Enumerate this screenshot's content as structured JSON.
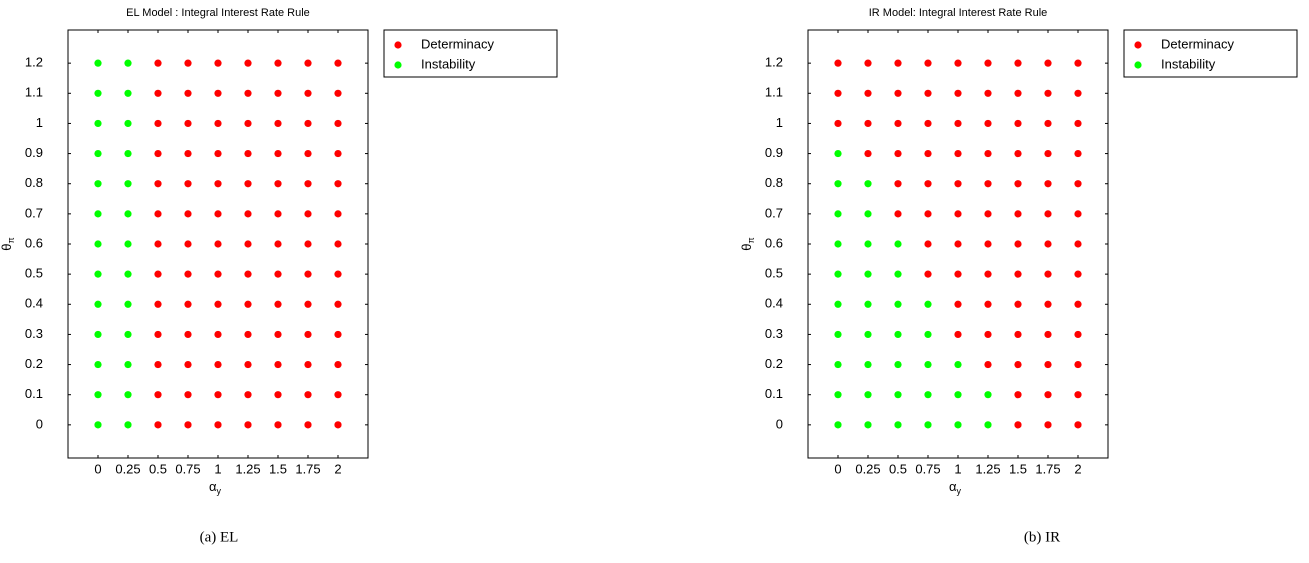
{
  "chart_data": [
    {
      "type": "scatter",
      "title": "EL Model : Integral Interest Rate Rule",
      "xlabel": "α",
      "xlabel_sub": "y",
      "ylabel": "θ",
      "ylabel_sub": "π",
      "caption": "(a)  EL",
      "xlim": [
        -0.25,
        2.25
      ],
      "ylim": [
        -0.11,
        1.31
      ],
      "xticks": [
        0,
        0.25,
        0.5,
        0.75,
        1,
        1.25,
        1.5,
        1.75,
        2
      ],
      "yticks": [
        0,
        0.1,
        0.2,
        0.3,
        0.4,
        0.5,
        0.6,
        0.7,
        0.8,
        0.9,
        1,
        1.1,
        1.2
      ],
      "legend": "northeastoutside",
      "series": [
        {
          "name": "Determinacy",
          "color": "#ff0000",
          "x": [
            0.5,
            0.75,
            1,
            1.25,
            1.5,
            1.75,
            2,
            0.5,
            0.75,
            1,
            1.25,
            1.5,
            1.75,
            2,
            0.5,
            0.75,
            1,
            1.25,
            1.5,
            1.75,
            2,
            0.5,
            0.75,
            1,
            1.25,
            1.5,
            1.75,
            2,
            0.5,
            0.75,
            1,
            1.25,
            1.5,
            1.75,
            2,
            0.5,
            0.75,
            1,
            1.25,
            1.5,
            1.75,
            2,
            0.5,
            0.75,
            1,
            1.25,
            1.5,
            1.75,
            2,
            0.5,
            0.75,
            1,
            1.25,
            1.5,
            1.75,
            2,
            0.5,
            0.75,
            1,
            1.25,
            1.5,
            1.75,
            2,
            0.5,
            0.75,
            1,
            1.25,
            1.5,
            1.75,
            2,
            0.5,
            0.75,
            1,
            1.25,
            1.5,
            1.75,
            2,
            0.5,
            0.75,
            1,
            1.25,
            1.5,
            1.75,
            2,
            0.5,
            0.75,
            1,
            1.25,
            1.5,
            1.75,
            2
          ],
          "values": [
            0,
            0,
            0,
            0,
            0,
            0,
            0,
            0.1,
            0.1,
            0.1,
            0.1,
            0.1,
            0.1,
            0.1,
            0.2,
            0.2,
            0.2,
            0.2,
            0.2,
            0.2,
            0.2,
            0.3,
            0.3,
            0.3,
            0.3,
            0.3,
            0.3,
            0.3,
            0.4,
            0.4,
            0.4,
            0.4,
            0.4,
            0.4,
            0.4,
            0.5,
            0.5,
            0.5,
            0.5,
            0.5,
            0.5,
            0.5,
            0.6,
            0.6,
            0.6,
            0.6,
            0.6,
            0.6,
            0.6,
            0.7,
            0.7,
            0.7,
            0.7,
            0.7,
            0.7,
            0.7,
            0.8,
            0.8,
            0.8,
            0.8,
            0.8,
            0.8,
            0.8,
            0.9,
            0.9,
            0.9,
            0.9,
            0.9,
            0.9,
            0.9,
            1,
            1,
            1,
            1,
            1,
            1,
            1,
            1.1,
            1.1,
            1.1,
            1.1,
            1.1,
            1.1,
            1.1,
            1.2,
            1.2,
            1.2,
            1.2,
            1.2,
            1.2,
            1.2
          ]
        },
        {
          "name": "Instability",
          "color": "#00ff00",
          "x": [
            0,
            0.25,
            0,
            0.25,
            0,
            0.25,
            0,
            0.25,
            0,
            0.25,
            0,
            0.25,
            0,
            0.25,
            0,
            0.25,
            0,
            0.25,
            0,
            0.25,
            0,
            0.25,
            0,
            0.25,
            0,
            0.25
          ],
          "values": [
            0,
            0,
            0.1,
            0.1,
            0.2,
            0.2,
            0.3,
            0.3,
            0.4,
            0.4,
            0.5,
            0.5,
            0.6,
            0.6,
            0.7,
            0.7,
            0.8,
            0.8,
            0.9,
            0.9,
            1,
            1,
            1.1,
            1.1,
            1.2,
            1.2
          ]
        }
      ]
    },
    {
      "type": "scatter",
      "title": "IR Model: Integral Interest Rate Rule",
      "xlabel": "α",
      "xlabel_sub": "y",
      "ylabel": "θ",
      "ylabel_sub": "π",
      "caption": "(b)  IR",
      "xlim": [
        -0.25,
        2.25
      ],
      "ylim": [
        -0.11,
        1.31
      ],
      "xticks": [
        0,
        0.25,
        0.5,
        0.75,
        1,
        1.25,
        1.5,
        1.75,
        2
      ],
      "yticks": [
        0,
        0.1,
        0.2,
        0.3,
        0.4,
        0.5,
        0.6,
        0.7,
        0.8,
        0.9,
        1,
        1.1,
        1.2
      ],
      "legend": "northeastoutside",
      "series": [
        {
          "name": "Determinacy",
          "color": "#ff0000",
          "x": [
            1.5,
            1.75,
            2,
            1.5,
            1.75,
            2,
            1.25,
            1.5,
            1.75,
            2,
            1,
            1.25,
            1.5,
            1.75,
            2,
            1,
            1.25,
            1.5,
            1.75,
            2,
            0.75,
            1,
            1.25,
            1.5,
            1.75,
            2,
            0.75,
            1,
            1.25,
            1.5,
            1.75,
            2,
            0.5,
            0.75,
            1,
            1.25,
            1.5,
            1.75,
            2,
            0.5,
            0.75,
            1,
            1.25,
            1.5,
            1.75,
            2,
            0.25,
            0.5,
            0.75,
            1,
            1.25,
            1.5,
            1.75,
            2,
            0,
            0.25,
            0.5,
            0.75,
            1,
            1.25,
            1.5,
            1.75,
            2,
            0,
            0.25,
            0.5,
            0.75,
            1,
            1.25,
            1.5,
            1.75,
            2,
            0,
            0.25,
            0.5,
            0.75,
            1,
            1.25,
            1.5,
            1.75,
            2
          ],
          "values": [
            0,
            0,
            0,
            0.1,
            0.1,
            0.1,
            0.2,
            0.2,
            0.2,
            0.2,
            0.3,
            0.3,
            0.3,
            0.3,
            0.3,
            0.4,
            0.4,
            0.4,
            0.4,
            0.4,
            0.5,
            0.5,
            0.5,
            0.5,
            0.5,
            0.5,
            0.6,
            0.6,
            0.6,
            0.6,
            0.6,
            0.6,
            0.7,
            0.7,
            0.7,
            0.7,
            0.7,
            0.7,
            0.7,
            0.8,
            0.8,
            0.8,
            0.8,
            0.8,
            0.8,
            0.8,
            0.9,
            0.9,
            0.9,
            0.9,
            0.9,
            0.9,
            0.9,
            0.9,
            1,
            1,
            1,
            1,
            1,
            1,
            1,
            1,
            1,
            1.1,
            1.1,
            1.1,
            1.1,
            1.1,
            1.1,
            1.1,
            1.1,
            1.1,
            1.2,
            1.2,
            1.2,
            1.2,
            1.2,
            1.2,
            1.2,
            1.2,
            1.2
          ]
        },
        {
          "name": "Instability",
          "color": "#00ff00",
          "x": [
            0,
            0.25,
            0.5,
            0.75,
            1,
            1.25,
            0,
            0.25,
            0.5,
            0.75,
            1,
            1.25,
            0,
            0.25,
            0.5,
            0.75,
            1,
            0,
            0.25,
            0.5,
            0.75,
            0,
            0.25,
            0.5,
            0.75,
            0,
            0.25,
            0.5,
            0,
            0.25,
            0.5,
            0,
            0.25,
            0,
            0.25,
            0
          ],
          "values": [
            0,
            0,
            0,
            0,
            0,
            0,
            0.1,
            0.1,
            0.1,
            0.1,
            0.1,
            0.1,
            0.2,
            0.2,
            0.2,
            0.2,
            0.2,
            0.3,
            0.3,
            0.3,
            0.3,
            0.4,
            0.4,
            0.4,
            0.4,
            0.5,
            0.5,
            0.5,
            0.6,
            0.6,
            0.6,
            0.7,
            0.7,
            0.8,
            0.8,
            0.9
          ]
        }
      ]
    }
  ]
}
